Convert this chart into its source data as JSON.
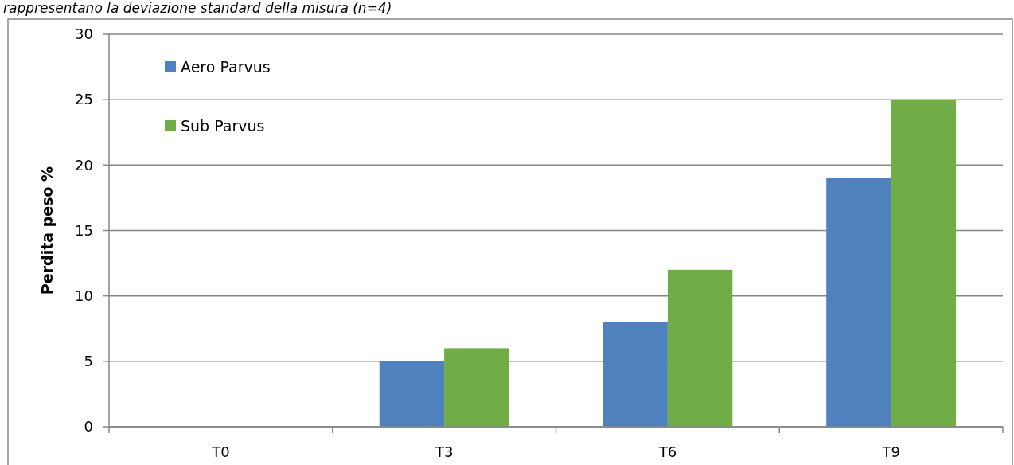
{
  "chart_data": {
    "type": "bar",
    "annotations": [
      "rappresentano la deviazione standard della misura (n=4)"
    ],
    "ylabel": "Perdita peso %",
    "categories": [
      "T0",
      "T3",
      "T6",
      "T9"
    ],
    "series": [
      {
        "name": "Aero Parvus",
        "color": "#4f81bd",
        "values": [
          0,
          5,
          8,
          19
        ]
      },
      {
        "name": "Sub Parvus",
        "color": "#70ad47",
        "values": [
          0,
          6,
          12,
          25
        ]
      }
    ],
    "ylim": [
      0,
      30
    ],
    "yticks": [
      0,
      5,
      10,
      15,
      20,
      25,
      30
    ],
    "grid": "y",
    "legend": "top left"
  }
}
